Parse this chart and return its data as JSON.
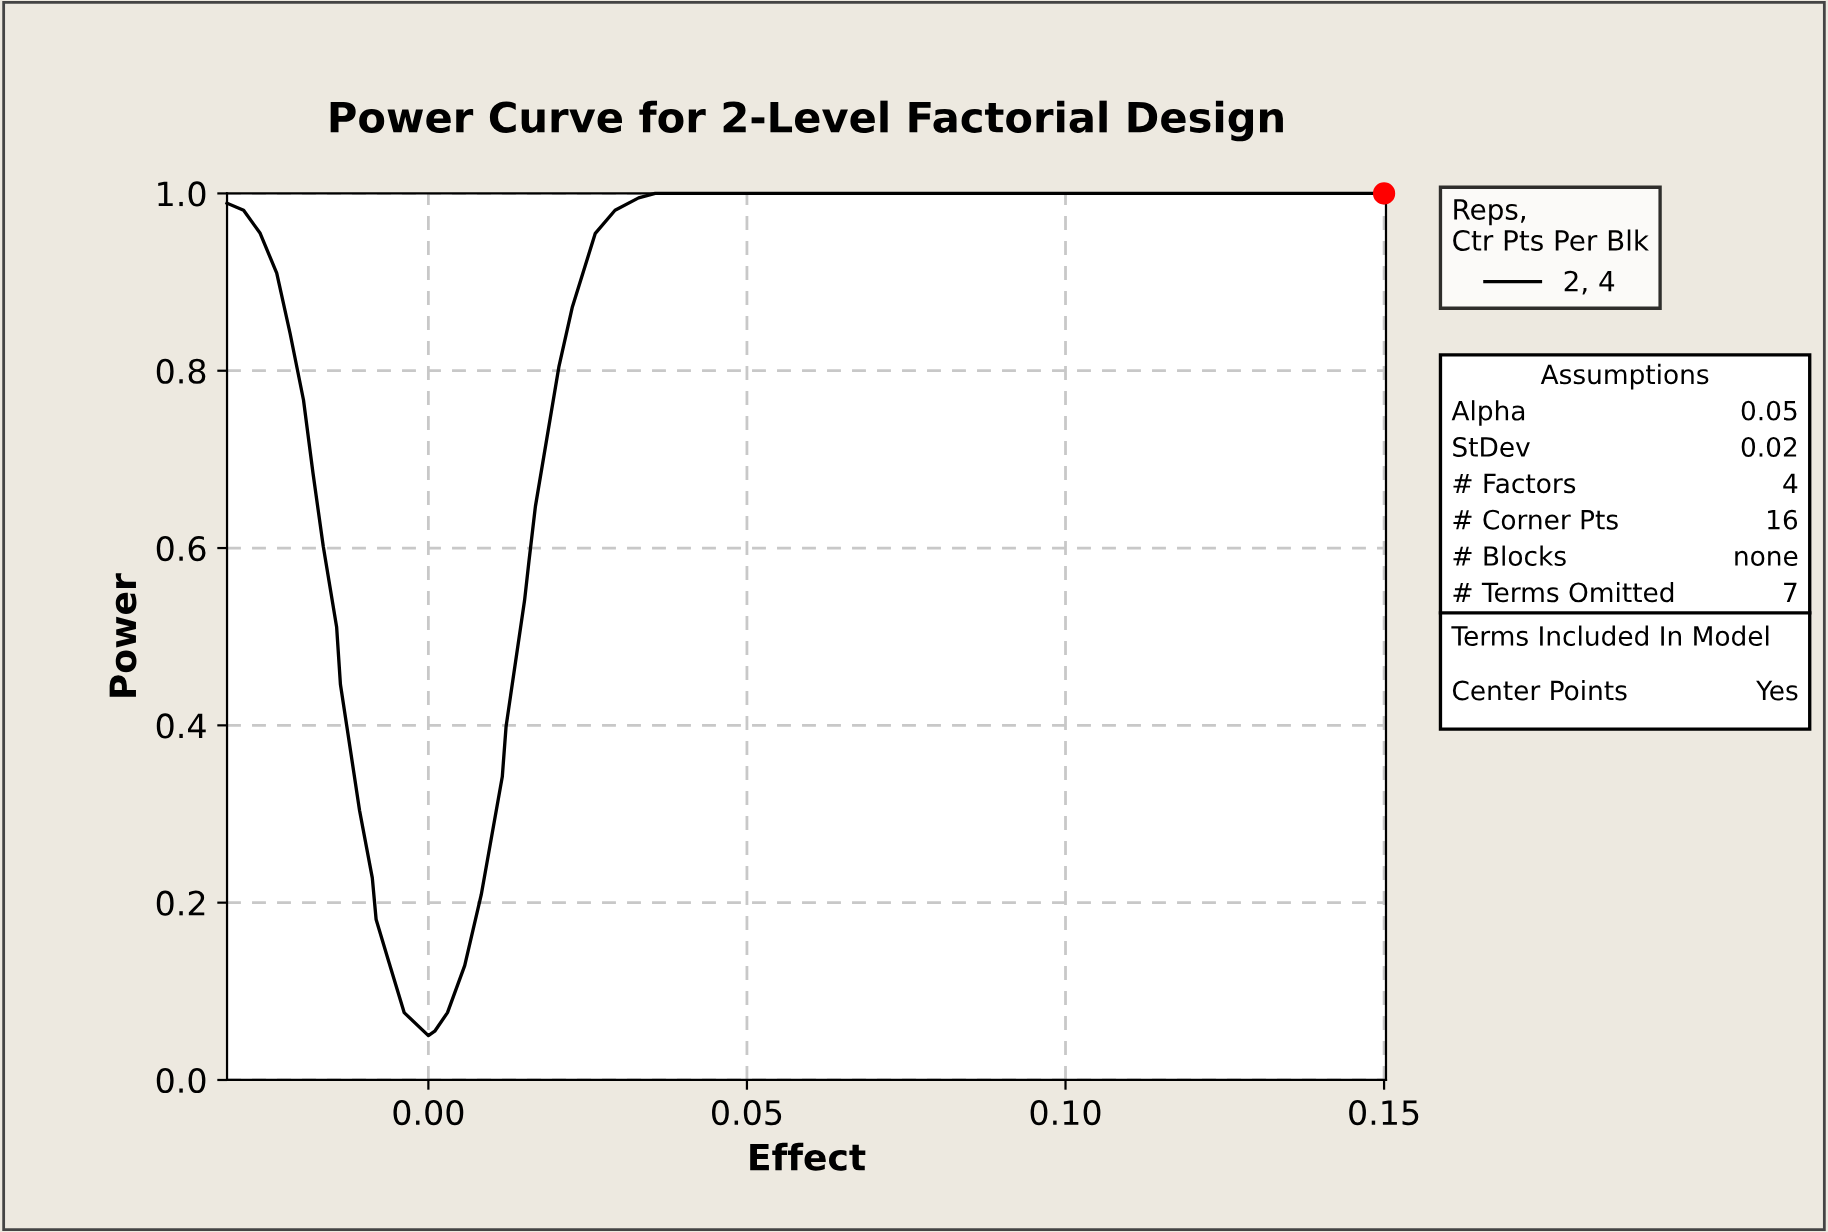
{
  "chart_data": {
    "type": "line",
    "title": "Power Curve for 2-Level Factorial Design",
    "xlabel": "Effect",
    "ylabel": "Power",
    "legend_title": "Reps,\nCtr Pts Per Blk",
    "legend": "right",
    "xlim": [
      -0.0316,
      0.1503
    ],
    "xticks": [
      {
        "value": 0,
        "label": "0.00"
      },
      {
        "value": 0.05,
        "label": "0.05"
      },
      {
        "value": 0.1,
        "label": "0.10"
      },
      {
        "value": 0.15,
        "label": "0.15"
      }
    ],
    "ylim": [
      0,
      1
    ],
    "yticks": [
      {
        "value": 0,
        "label": "0.0"
      },
      {
        "value": 0.2,
        "label": "0.2"
      },
      {
        "value": 0.4,
        "label": "0.4"
      },
      {
        "value": 0.6,
        "label": "0.6"
      },
      {
        "value": 0.8,
        "label": "0.8"
      },
      {
        "value": 1,
        "label": "1.0"
      }
    ],
    "grid": true,
    "series": [
      {
        "name": "2, 4",
        "color": "#000000",
        "x": [
          -0.0316,
          -0.029,
          -0.0264,
          -0.0238,
          -0.0217,
          -0.0196,
          -0.0181,
          -0.0165,
          -0.0144,
          -0.0138,
          -0.0128,
          -0.0108,
          -0.0088,
          -0.0082,
          -0.0062,
          -0.0038,
          0,
          0.001,
          0.003,
          0.0057,
          0.0083,
          0.0116,
          0.0122,
          0.0151,
          0.0158,
          0.0168,
          0.0205,
          0.0226,
          0.0262,
          0.0293,
          0.033,
          0.0356,
          0.15
        ],
        "values": [
          0.989,
          0.981,
          0.955,
          0.91,
          0.842,
          0.767,
          0.684,
          0.602,
          0.511,
          0.446,
          0.399,
          0.304,
          0.228,
          0.181,
          0.133,
          0.076,
          0.05,
          0.055,
          0.076,
          0.129,
          0.209,
          0.342,
          0.399,
          0.541,
          0.586,
          0.647,
          0.805,
          0.872,
          0.955,
          0.981,
          0.995,
          1.0,
          1.0
        ]
      },
      {
        "type": "scatter",
        "color": "#ff0000",
        "marker": "circle",
        "x": [
          0.15
        ],
        "values": [
          1.0
        ]
      }
    ],
    "annotations": [
      "Assumptions",
      "Alpha",
      "0.05",
      "StDev",
      "0.02",
      "# Factors",
      "4",
      "# Corner Pts",
      "16",
      "# Blocks",
      "none",
      "# Terms Omitted",
      "7",
      "Terms Included In Model",
      "Center Points",
      "Yes"
    ]
  }
}
